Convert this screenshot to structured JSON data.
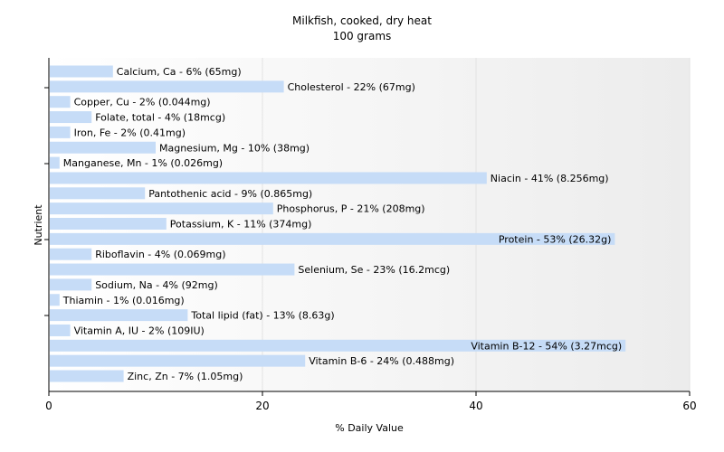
{
  "chart_data": {
    "type": "bar",
    "orientation": "horizontal",
    "title": "Milkfish, cooked, dry heat",
    "subtitle": "100 grams",
    "xlabel": "% Daily Value",
    "ylabel": "Nutrient",
    "xlim": [
      0,
      60
    ],
    "xticks": [
      0,
      20,
      40,
      60
    ],
    "grid": true,
    "bar_color": "#c6dcf7",
    "categories": [
      "Calcium, Ca",
      "Cholesterol",
      "Copper, Cu",
      "Folate, total",
      "Iron, Fe",
      "Magnesium, Mg",
      "Manganese, Mn",
      "Niacin",
      "Pantothenic acid",
      "Phosphorus, P",
      "Potassium, K",
      "Protein",
      "Riboflavin",
      "Selenium, Se",
      "Sodium, Na",
      "Thiamin",
      "Total lipid (fat)",
      "Vitamin A, IU",
      "Vitamin B-12",
      "Vitamin B-6",
      "Zinc, Zn"
    ],
    "values": [
      6,
      22,
      2,
      4,
      2,
      10,
      1,
      41,
      9,
      21,
      11,
      53,
      4,
      23,
      4,
      1,
      13,
      2,
      54,
      24,
      7
    ],
    "labels": [
      "Calcium, Ca - 6% (65mg)",
      "Cholesterol - 22% (67mg)",
      "Copper, Cu - 2% (0.044mg)",
      "Folate, total - 4% (18mcg)",
      "Iron, Fe - 2% (0.41mg)",
      "Magnesium, Mg - 10% (38mg)",
      "Manganese, Mn - 1% (0.026mg)",
      "Niacin - 41% (8.256mg)",
      "Pantothenic acid - 9% (0.865mg)",
      "Phosphorus, P - 21% (208mg)",
      "Potassium, K - 11% (374mg)",
      "Protein - 53% (26.32g)",
      "Riboflavin - 4% (0.069mg)",
      "Selenium, Se - 23% (16.2mcg)",
      "Sodium, Na - 4% (92mg)",
      "Thiamin - 1% (0.016mg)",
      "Total lipid (fat) - 13% (8.63g)",
      "Vitamin A, IU - 2% (109IU)",
      "Vitamin B-12 - 54% (3.27mcg)",
      "Vitamin B-6 - 24% (0.488mg)",
      "Zinc, Zn - 7% (1.05mg)"
    ]
  }
}
